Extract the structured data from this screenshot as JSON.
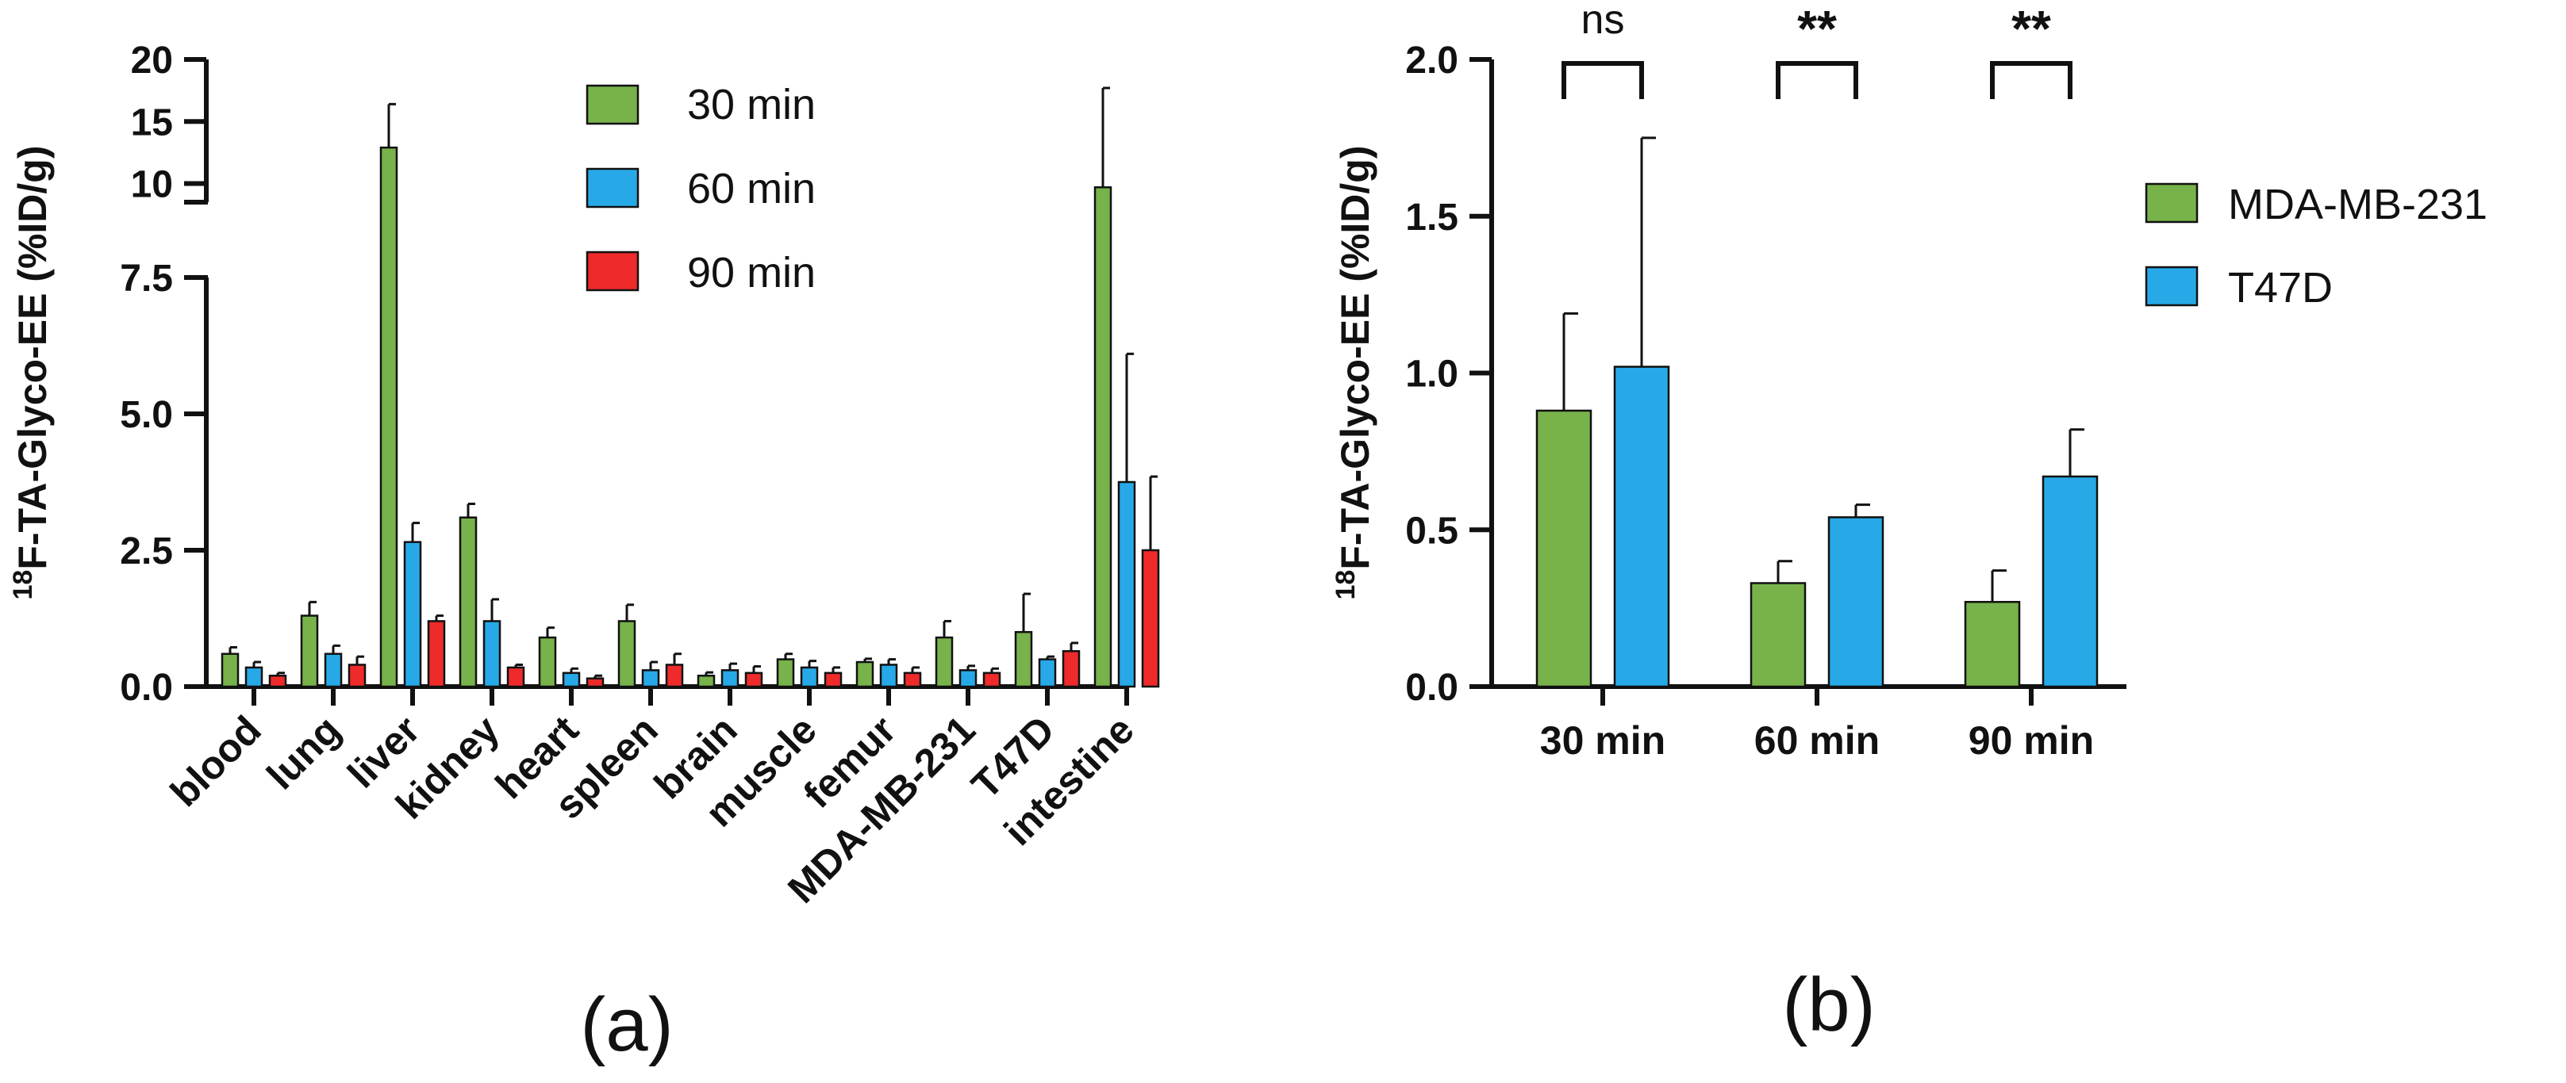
{
  "colors": {
    "c30": "#77b24a",
    "c60": "#27a9e8",
    "c90": "#ee2a2a",
    "mda": "#77b24a",
    "t47d": "#27a9e8"
  },
  "panel_a_label": "(a)",
  "panel_b_label": "(b)",
  "ylabel_super": "18",
  "ylabel_main": "F-TA-Glyco-EE (%ID/g)",
  "chart_data": [
    {
      "type": "bar",
      "panel": "a",
      "ylabel": "18F-TA-Glyco-EE (%ID/g)",
      "categories": [
        "blood",
        "lung",
        "liver",
        "kidney",
        "heart",
        "spleen",
        "brain",
        "muscle",
        "femur",
        "MDA-MB-231",
        "T47D",
        "intestine"
      ],
      "series": [
        {
          "name": "30 min",
          "values": [
            0.6,
            1.3,
            12.9,
            3.1,
            0.9,
            1.2,
            0.2,
            0.5,
            0.45,
            0.9,
            1.0,
            9.7
          ],
          "errors": [
            0.12,
            0.25,
            3.5,
            0.25,
            0.18,
            0.3,
            0.06,
            0.1,
            0.06,
            0.3,
            0.7,
            8.0
          ]
        },
        {
          "name": "60 min",
          "values": [
            0.35,
            0.6,
            2.65,
            1.2,
            0.25,
            0.3,
            0.3,
            0.35,
            0.4,
            0.3,
            0.5,
            3.75
          ],
          "errors": [
            0.1,
            0.15,
            0.35,
            0.4,
            0.08,
            0.15,
            0.12,
            0.12,
            0.1,
            0.08,
            0.05,
            2.35
          ]
        },
        {
          "name": "90 min",
          "values": [
            0.2,
            0.4,
            1.2,
            0.35,
            0.15,
            0.4,
            0.25,
            0.25,
            0.25,
            0.25,
            0.65,
            2.5
          ],
          "errors": [
            0.05,
            0.15,
            0.1,
            0.05,
            0.05,
            0.2,
            0.12,
            0.1,
            0.1,
            0.08,
            0.15,
            1.35
          ]
        }
      ],
      "yaxis": {
        "lower": {
          "range": [
            0,
            7.5
          ],
          "ticks": [
            "0.0",
            "2.5",
            "5.0",
            "7.5"
          ]
        },
        "upper": {
          "range": [
            8.5,
            20
          ],
          "ticks": [
            "10",
            "15",
            "20"
          ]
        },
        "broken": true
      },
      "legend": {
        "position": "top-right",
        "entries": [
          "30 min",
          "60 min",
          "90 min"
        ]
      }
    },
    {
      "type": "bar",
      "panel": "b",
      "ylabel": "18F-TA-Glyco-EE (%ID/g)",
      "categories": [
        "30 min",
        "60 min",
        "90 min"
      ],
      "series": [
        {
          "name": "MDA-MB-231",
          "values": [
            0.88,
            0.33,
            0.27
          ],
          "errors": [
            0.31,
            0.07,
            0.1
          ]
        },
        {
          "name": "T47D",
          "values": [
            1.02,
            0.54,
            0.67
          ],
          "errors": [
            0.73,
            0.04,
            0.15
          ]
        }
      ],
      "ylim": [
        0,
        2.0
      ],
      "yticks": [
        "0.0",
        "0.5",
        "1.0",
        "1.5",
        "2.0"
      ],
      "significance": [
        "ns",
        "**",
        "**"
      ],
      "legend": {
        "position": "right",
        "entries": [
          "MDA-MB-231",
          "T47D"
        ]
      }
    }
  ]
}
